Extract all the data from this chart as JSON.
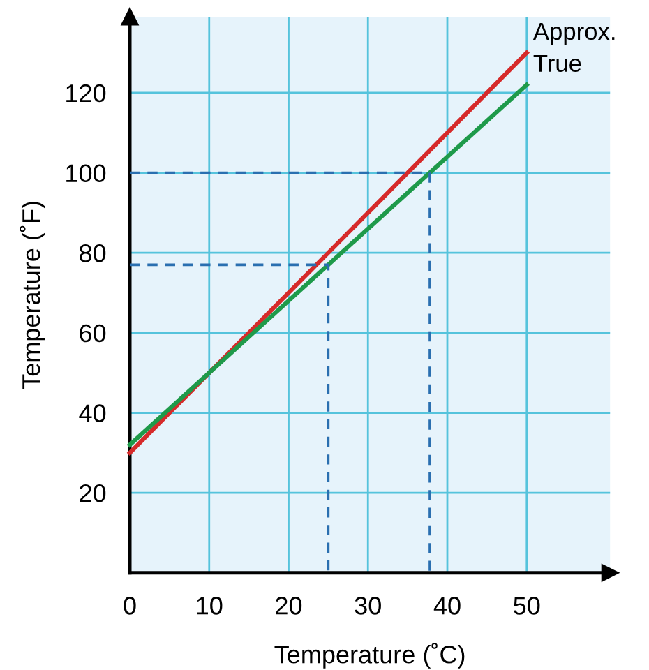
{
  "chart_data": {
    "type": "line",
    "xlabel": "Temperature (˚C)",
    "ylabel": "Temperature (˚F)",
    "x": [
      0,
      50
    ],
    "series": [
      {
        "name": "Approx.",
        "color": "#d62a2a",
        "values": [
          30,
          130
        ]
      },
      {
        "name": "True",
        "color": "#1e9a4a",
        "values": [
          32,
          122
        ]
      },
      {
        "color": "#2a6fb0",
        "line_style": "dashed",
        "x": [
          0,
          37.8,
          37.8
        ],
        "values": [
          100,
          100,
          0
        ]
      },
      {
        "color": "#2a6fb0",
        "line_style": "dashed",
        "x": [
          0,
          25,
          25
        ],
        "values": [
          77,
          77,
          0
        ]
      }
    ],
    "xlim": [
      0,
      60.5
    ],
    "ylim": [
      0,
      139
    ],
    "xticks": [
      0,
      10,
      20,
      30,
      40,
      50
    ],
    "yticks": [
      20,
      40,
      60,
      80,
      100,
      120
    ],
    "grid": true,
    "legend": false
  }
}
